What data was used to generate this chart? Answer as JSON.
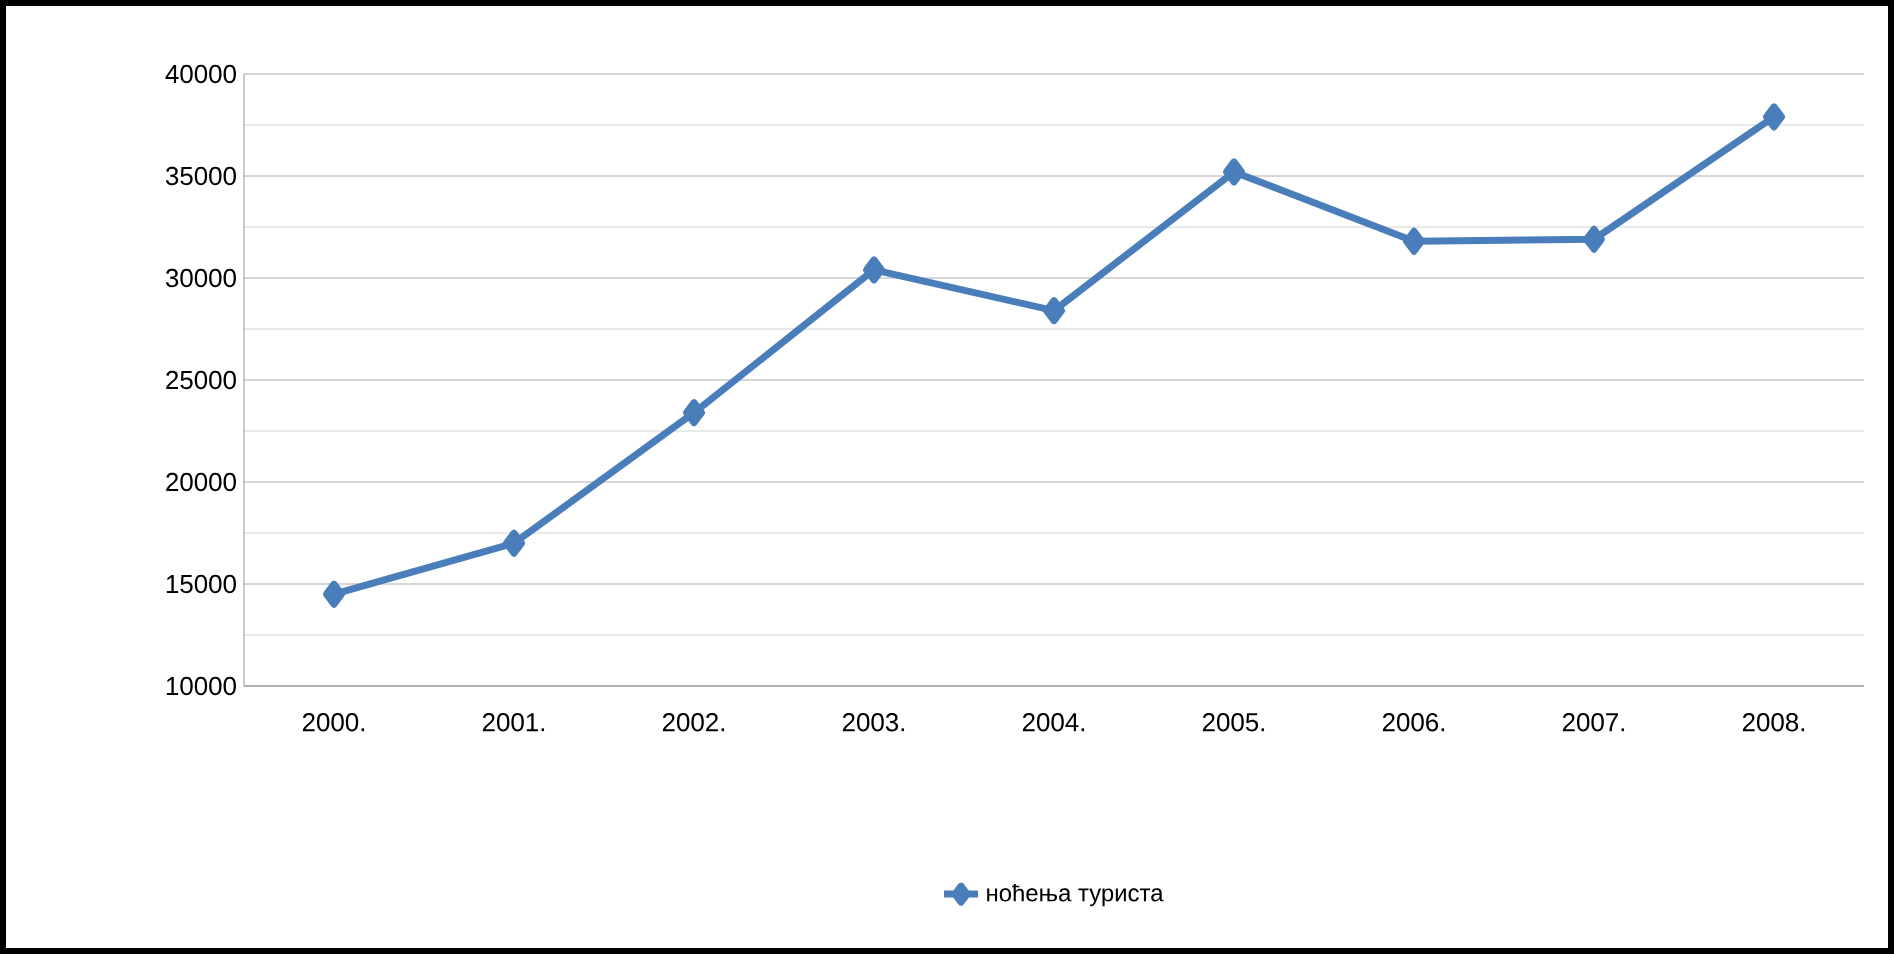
{
  "chart_data": {
    "type": "line",
    "categories": [
      "2000.",
      "2001.",
      "2002.",
      "2003.",
      "2004.",
      "2005.",
      "2006.",
      "2007.",
      "2008."
    ],
    "series": [
      {
        "name": "ноћења туриста",
        "color": "#4a7ebb",
        "values": [
          14500,
          17000,
          23400,
          30400,
          28400,
          35200,
          31800,
          31900,
          37900
        ]
      }
    ],
    "ylim": [
      10000,
      40000
    ],
    "yticks": [
      10000,
      15000,
      20000,
      25000,
      30000,
      35000,
      40000
    ],
    "grid": "y",
    "legend": "bottom",
    "marker": "diamond",
    "line_style": "solid"
  }
}
